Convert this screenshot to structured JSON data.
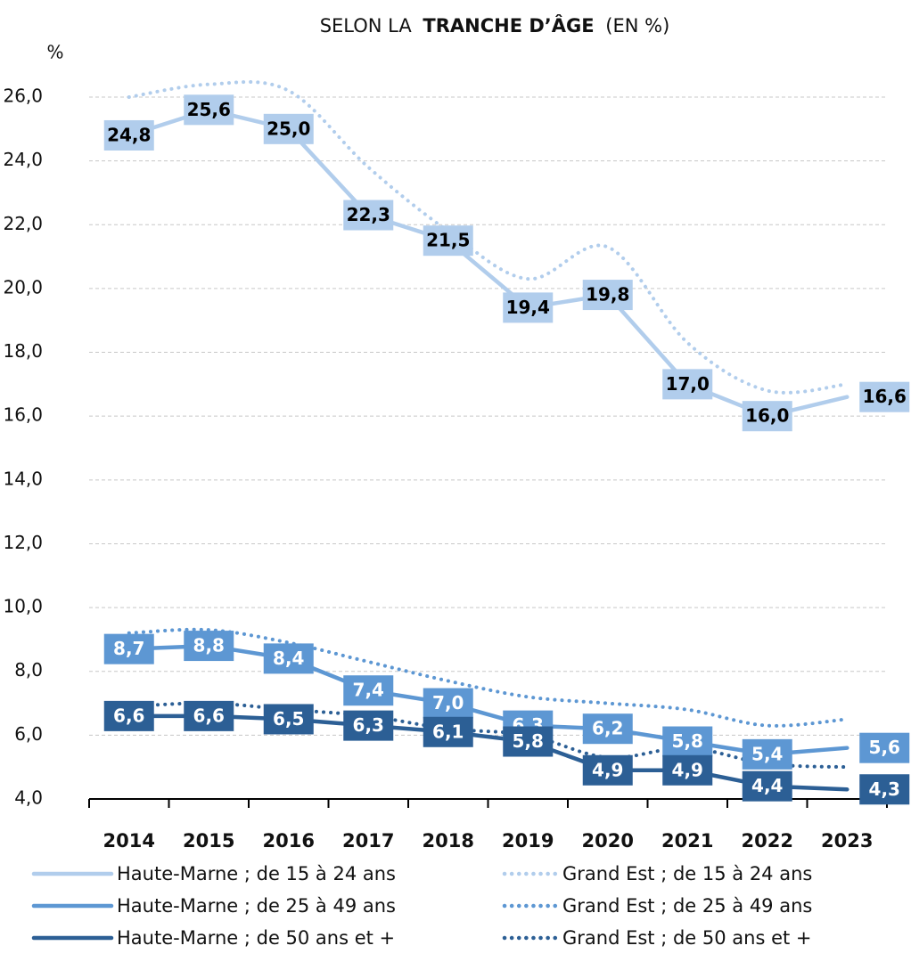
{
  "chart_data": {
    "type": "line",
    "title": {
      "prefix": "SELON LA",
      "bold": "TRANCHE D’ÂGE",
      "suffix": "(EN %)"
    },
    "y_unit": "%",
    "categories": [
      "2014",
      "2015",
      "2016",
      "2017",
      "2018",
      "2019",
      "2020",
      "2021",
      "2022",
      "2023"
    ],
    "ylim": [
      4,
      26
    ],
    "yticks": [
      {
        "value": 4,
        "label": "4,0"
      },
      {
        "value": 6,
        "label": "6,0"
      },
      {
        "value": 8,
        "label": "8,0"
      },
      {
        "value": 10,
        "label": "10,0"
      },
      {
        "value": 12,
        "label": "12,0"
      },
      {
        "value": 14,
        "label": "14,0"
      },
      {
        "value": 16,
        "label": "16,0"
      },
      {
        "value": 18,
        "label": "18,0"
      },
      {
        "value": 20,
        "label": "20,0"
      },
      {
        "value": 22,
        "label": "22,0"
      },
      {
        "value": 24,
        "label": "24,0"
      },
      {
        "value": 26,
        "label": "26,0"
      }
    ],
    "grid": true,
    "legend": "bottom",
    "series": [
      {
        "name": "Haute-Marne ; de 15 à 24 ans",
        "color": "#b1cdec",
        "line_style": "solid",
        "label_color": "#000000",
        "values": [
          24.8,
          25.6,
          25.0,
          22.3,
          21.5,
          19.4,
          19.8,
          17.0,
          16.0,
          16.6
        ],
        "value_labels": [
          "24,8",
          "25,6",
          "25,0",
          "22,3",
          "21,5",
          "19,4",
          "19,8",
          "17,0",
          "16,0",
          "16,6"
        ]
      },
      {
        "name": "Haute-Marne ; de 25 à 49 ans",
        "color": "#5d97d3",
        "line_style": "solid",
        "label_color": "#ffffff",
        "values": [
          8.7,
          8.8,
          8.4,
          7.4,
          7.0,
          6.3,
          6.2,
          5.8,
          5.4,
          5.6
        ],
        "value_labels": [
          "8,7",
          "8,8",
          "8,4",
          "7,4",
          "7,0",
          "6,3",
          "6,2",
          "5,8",
          "5,4",
          "5,6"
        ]
      },
      {
        "name": "Haute-Marne ; de 50 ans et +",
        "color": "#2c5f95",
        "line_style": "solid",
        "label_color": "#ffffff",
        "values": [
          6.6,
          6.6,
          6.5,
          6.3,
          6.1,
          5.8,
          4.9,
          4.9,
          4.4,
          4.3
        ],
        "value_labels": [
          "6,6",
          "6,6",
          "6,5",
          "6,3",
          "6,1",
          "5,8",
          "4,9",
          "4,9",
          "4,4",
          "4,3"
        ]
      },
      {
        "name": "Grand Est ; de 15 à 24 ans",
        "color": "#b1cdec",
        "line_style": "dotted",
        "values": [
          26.0,
          26.4,
          26.2,
          23.8,
          21.8,
          20.3,
          21.3,
          18.3,
          16.8,
          17.0
        ]
      },
      {
        "name": "Grand Est ; de 25 à 49 ans",
        "color": "#5d97d3",
        "line_style": "dotted",
        "values": [
          9.2,
          9.3,
          8.9,
          8.3,
          7.7,
          7.2,
          7.0,
          6.8,
          6.3,
          6.5
        ]
      },
      {
        "name": "Grand Est ; de 50 ans et +",
        "color": "#2c5f95",
        "line_style": "dotted",
        "values": [
          6.9,
          7.0,
          6.8,
          6.6,
          6.2,
          6.0,
          5.3,
          5.6,
          5.1,
          5.0
        ]
      }
    ]
  }
}
